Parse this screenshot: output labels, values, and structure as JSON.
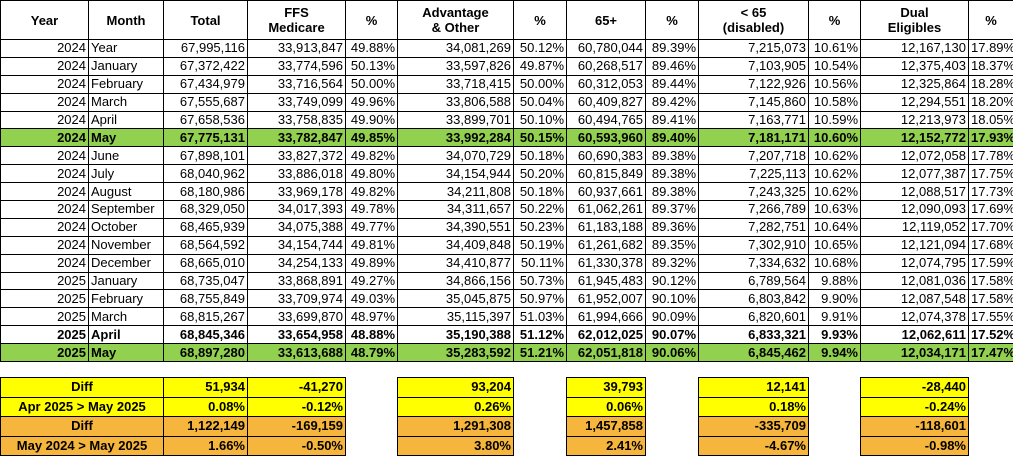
{
  "columns": [
    "Year",
    "Month",
    "Total",
    [
      "FFS",
      "Medicare"
    ],
    "%",
    [
      "Advantage",
      "& Other"
    ],
    "%",
    "65+",
    "%",
    [
      "< 65",
      "(disabled)"
    ],
    "%",
    [
      "Dual",
      "Eligibles"
    ],
    "%"
  ],
  "rows": [
    [
      "2024",
      "Year",
      "67,995,116",
      "33,913,847",
      "49.88%",
      "34,081,269",
      "50.12%",
      "60,780,044",
      "89.39%",
      "7,215,073",
      "10.61%",
      "12,167,130",
      "17.89%"
    ],
    [
      "2024",
      "January",
      "67,372,422",
      "33,774,596",
      "50.13%",
      "33,597,826",
      "49.87%",
      "60,268,517",
      "89.46%",
      "7,103,905",
      "10.54%",
      "12,375,403",
      "18.37%"
    ],
    [
      "2024",
      "February",
      "67,434,979",
      "33,716,564",
      "50.00%",
      "33,718,415",
      "50.00%",
      "60,312,053",
      "89.44%",
      "7,122,926",
      "10.56%",
      "12,325,864",
      "18.28%"
    ],
    [
      "2024",
      "March",
      "67,555,687",
      "33,749,099",
      "49.96%",
      "33,806,588",
      "50.04%",
      "60,409,827",
      "89.42%",
      "7,145,860",
      "10.58%",
      "12,294,551",
      "18.20%"
    ],
    [
      "2024",
      "April",
      "67,658,536",
      "33,758,835",
      "49.90%",
      "33,899,701",
      "50.10%",
      "60,494,765",
      "89.41%",
      "7,163,771",
      "10.59%",
      "12,213,973",
      "18.05%"
    ],
    [
      "2024",
      "May",
      "67,775,131",
      "33,782,847",
      "49.85%",
      "33,992,284",
      "50.15%",
      "60,593,960",
      "89.40%",
      "7,181,171",
      "10.60%",
      "12,152,772",
      "17.93%"
    ],
    [
      "2024",
      "June",
      "67,898,101",
      "33,827,372",
      "49.82%",
      "34,070,729",
      "50.18%",
      "60,690,383",
      "89.38%",
      "7,207,718",
      "10.62%",
      "12,072,058",
      "17.78%"
    ],
    [
      "2024",
      "July",
      "68,040,962",
      "33,886,018",
      "49.80%",
      "34,154,944",
      "50.20%",
      "60,815,849",
      "89.38%",
      "7,225,113",
      "10.62%",
      "12,077,387",
      "17.75%"
    ],
    [
      "2024",
      "August",
      "68,180,986",
      "33,969,178",
      "49.82%",
      "34,211,808",
      "50.18%",
      "60,937,661",
      "89.38%",
      "7,243,325",
      "10.62%",
      "12,088,517",
      "17.73%"
    ],
    [
      "2024",
      "September",
      "68,329,050",
      "34,017,393",
      "49.78%",
      "34,311,657",
      "50.22%",
      "61,062,261",
      "89.37%",
      "7,266,789",
      "10.63%",
      "12,090,093",
      "17.69%"
    ],
    [
      "2024",
      "October",
      "68,465,939",
      "34,075,388",
      "49.77%",
      "34,390,551",
      "50.23%",
      "61,183,188",
      "89.36%",
      "7,282,751",
      "10.64%",
      "12,119,052",
      "17.70%"
    ],
    [
      "2024",
      "November",
      "68,564,592",
      "34,154,744",
      "49.81%",
      "34,409,848",
      "50.19%",
      "61,261,682",
      "89.35%",
      "7,302,910",
      "10.65%",
      "12,121,094",
      "17.68%"
    ],
    [
      "2024",
      "December",
      "68,665,010",
      "34,254,133",
      "49.89%",
      "34,410,877",
      "50.11%",
      "61,330,378",
      "89.32%",
      "7,334,632",
      "10.68%",
      "12,074,795",
      "17.59%"
    ],
    [
      "2025",
      "January",
      "68,735,047",
      "33,868,891",
      "49.27%",
      "34,866,156",
      "50.73%",
      "61,945,483",
      "90.12%",
      "6,789,564",
      "9.88%",
      "12,081,036",
      "17.58%"
    ],
    [
      "2025",
      "February",
      "68,755,849",
      "33,709,974",
      "49.03%",
      "35,045,875",
      "50.97%",
      "61,952,007",
      "90.10%",
      "6,803,842",
      "9.90%",
      "12,087,548",
      "17.58%"
    ],
    [
      "2025",
      "March",
      "68,815,267",
      "33,699,870",
      "48.97%",
      "35,115,397",
      "51.03%",
      "61,994,666",
      "90.09%",
      "6,820,601",
      "9.91%",
      "12,074,378",
      "17.55%"
    ],
    [
      "2025",
      "April",
      "68,845,346",
      "33,654,958",
      "48.88%",
      "35,190,388",
      "51.12%",
      "62,012,025",
      "90.07%",
      "6,833,321",
      "9.93%",
      "12,062,611",
      "17.52%"
    ],
    [
      "2025",
      "May",
      "68,897,280",
      "33,613,688",
      "48.79%",
      "35,283,592",
      "51.21%",
      "62,051,818",
      "90.06%",
      "6,845,462",
      "9.94%",
      "12,034,171",
      "17.47%"
    ]
  ],
  "bold_rows": [
    5,
    16,
    17
  ],
  "green_rows": [
    5,
    17
  ],
  "green": "#92d050",
  "summary": [
    {
      "label": "Diff",
      "color": "#ffff00",
      "values": [
        "51,934",
        "-41,270",
        "93,204",
        "39,793",
        "12,141",
        "-28,440"
      ]
    },
    {
      "label": "Apr 2025 > May 2025",
      "color": "#ffff00",
      "values": [
        "0.08%",
        "-0.12%",
        "0.26%",
        "0.06%",
        "0.18%",
        "-0.24%"
      ]
    },
    {
      "label": "Diff",
      "color": "#f6b53d",
      "values": [
        "1,122,149",
        "-169,159",
        "1,291,308",
        "1,457,858",
        "-335,709",
        "-118,601"
      ]
    },
    {
      "label": "May 2024 > May 2025",
      "color": "#f6b53d",
      "values": [
        "1.66%",
        "-0.50%",
        "3.80%",
        "2.41%",
        "-4.67%",
        "-0.98%"
      ]
    }
  ]
}
